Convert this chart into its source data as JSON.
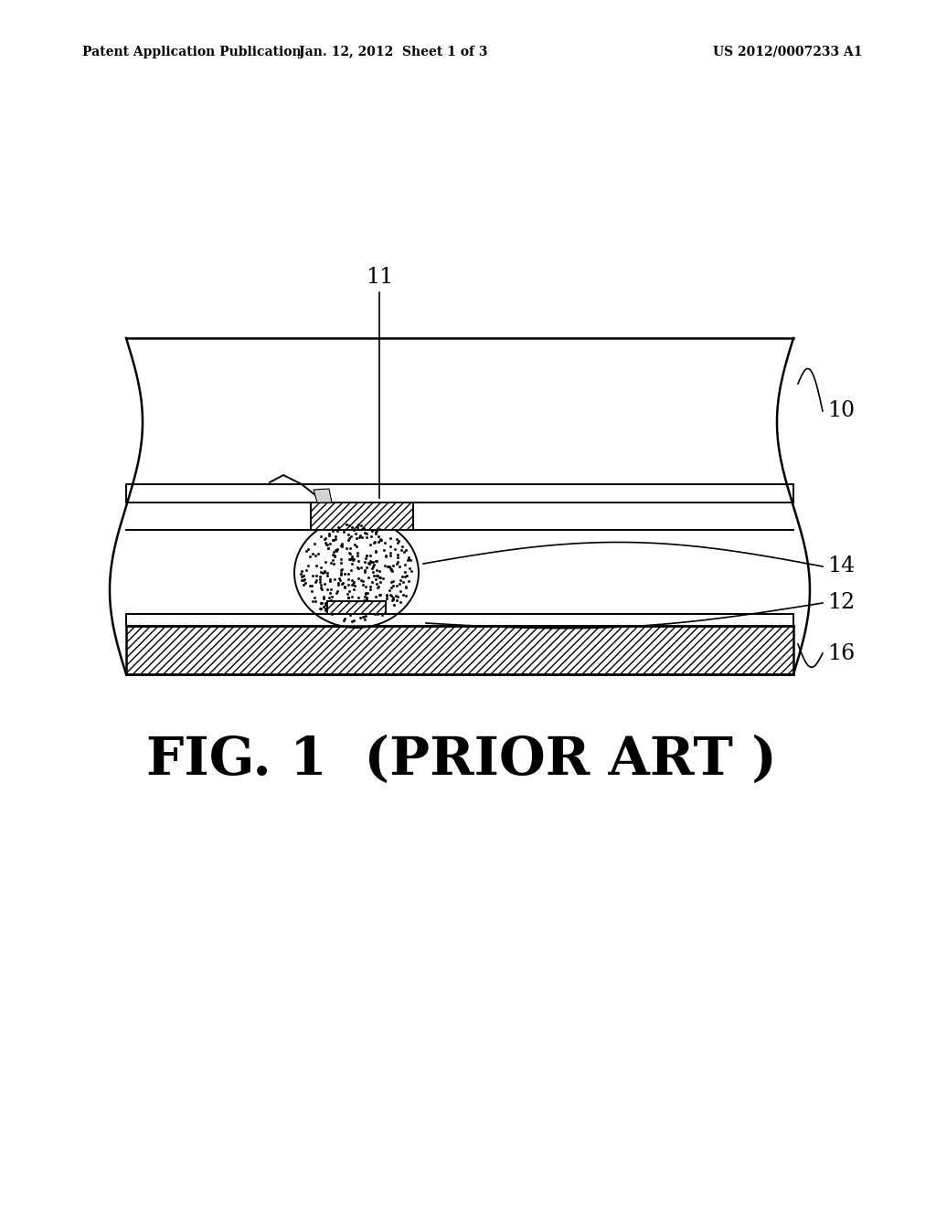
{
  "bg_color": "#ffffff",
  "header_left": "Patent Application Publication",
  "header_mid": "Jan. 12, 2012  Sheet 1 of 3",
  "header_right": "US 2012/0007233 A1",
  "caption": "FIG. 1  (PRIOR ART )",
  "label_11": "11",
  "label_10": "10",
  "label_14": "14",
  "label_12": "12",
  "label_16": "16",
  "line_color": "#000000"
}
